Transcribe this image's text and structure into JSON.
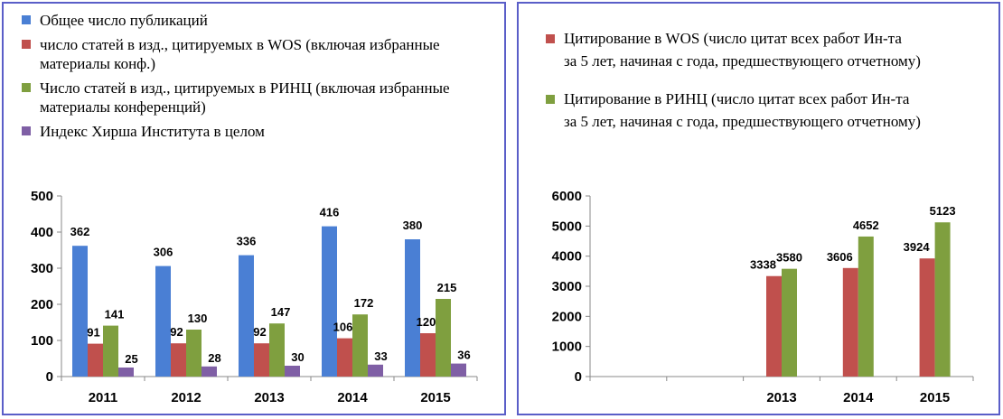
{
  "colors": {
    "blue": "#4a7fd4",
    "red": "#c0504d",
    "green": "#7f9f3f",
    "purple": "#7f5fa5",
    "frame": "#5a5ec8"
  },
  "chart_data": [
    {
      "type": "bar",
      "categories": [
        "2011",
        "2012",
        "2013",
        "2014",
        "2015"
      ],
      "ylim": [
        0,
        500
      ],
      "yticks": [
        0,
        100,
        200,
        300,
        400,
        500
      ],
      "legend_position": "top",
      "grid": false,
      "series": [
        {
          "name": "Общее число публикаций",
          "color": "blue",
          "values": [
            362,
            306,
            336,
            416,
            380
          ]
        },
        {
          "name": "число статей в изд., цитируемых  в WOS (включая избранные материалы конф.)",
          "color": "red",
          "values": [
            91,
            92,
            92,
            106,
            120
          ]
        },
        {
          "name": "Число статей в изд., цитируемых  в РИНЦ (включая избранные материалы конференций)",
          "color": "green",
          "values": [
            141,
            130,
            147,
            172,
            215
          ]
        },
        {
          "name": "Индекс Хирша Института в целом",
          "color": "purple",
          "values": [
            25,
            28,
            30,
            33,
            36
          ]
        }
      ]
    },
    {
      "type": "bar",
      "categories": [
        "",
        "",
        "2013",
        "2014",
        "2015"
      ],
      "ylim": [
        0,
        6000
      ],
      "yticks": [
        0,
        1000,
        2000,
        3000,
        4000,
        5000,
        6000
      ],
      "legend_position": "top",
      "grid": false,
      "series": [
        {
          "name": "Цитирование в WOS (число цитат всех работ Ин-та за 5 лет, начиная с года, предшествующего отчетному)",
          "legend_lines": [
            "Цитирование в WOS (число цитат всех работ Ин-та",
            "за 5 лет, начиная с года, предшествующего отчетному)"
          ],
          "color": "red",
          "values": [
            null,
            null,
            3338,
            3606,
            3924
          ]
        },
        {
          "name": "Цитирование в РИНЦ (число цитат всех работ Ин-та за 5 лет, начиная с года, предшествующего отчетному)",
          "legend_lines": [
            "Цитирование в РИНЦ (число цитат всех работ Ин-та",
            "за 5 лет, начиная с года, предшествующего отчетному)"
          ],
          "color": "green",
          "values": [
            null,
            null,
            3580,
            4652,
            5123
          ]
        }
      ]
    }
  ]
}
